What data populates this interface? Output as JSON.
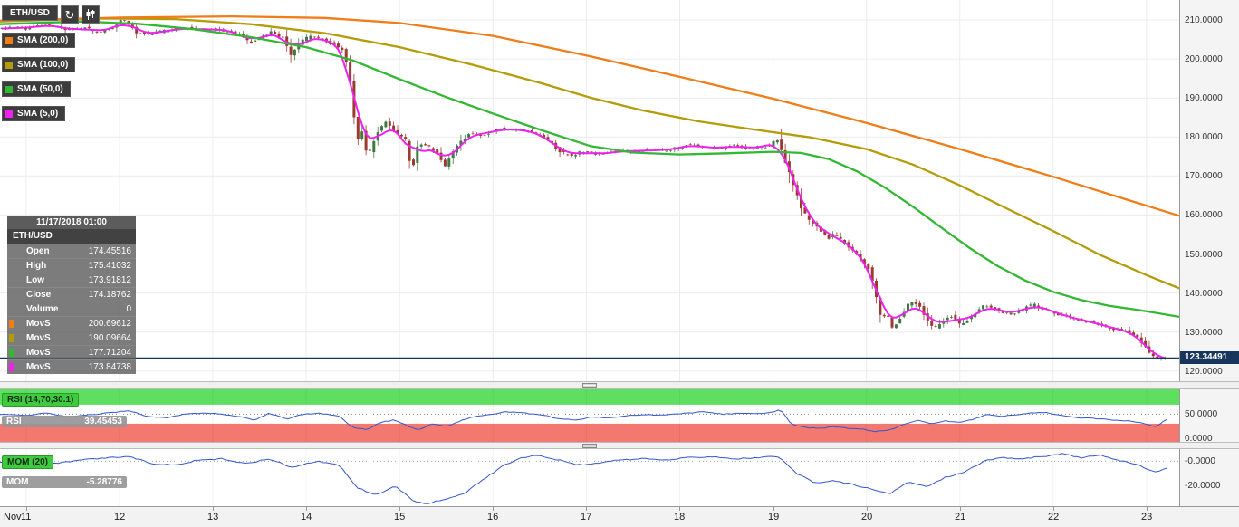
{
  "toolbar": {
    "symbol": "ETH/USD"
  },
  "legend": {
    "items": [
      {
        "label": "SMA (200,0)",
        "color": "#ef7d18"
      },
      {
        "label": "SMA (100,0)",
        "color": "#b39c08"
      },
      {
        "label": "SMA (50,0)",
        "color": "#33b833"
      },
      {
        "label": "SMA (5,0)",
        "color": "#ee22ee"
      }
    ]
  },
  "tooltip": {
    "timestamp": "11/17/2018 01:00",
    "symbol": "ETH/USD",
    "rows": [
      {
        "label": "Open",
        "value": "174.45516"
      },
      {
        "label": "High",
        "value": "175.41032"
      },
      {
        "label": "Low",
        "value": "173.91812"
      },
      {
        "label": "Close",
        "value": "174.18762"
      },
      {
        "label": "Volume",
        "value": "0"
      },
      {
        "label": "MovS",
        "value": "200.69612",
        "marker": "#ef7d18"
      },
      {
        "label": "MovS",
        "value": "190.09664",
        "marker": "#b39c08"
      },
      {
        "label": "MovS",
        "value": "177.71204",
        "marker": "#33b833"
      },
      {
        "label": "MovS",
        "value": "173.84738",
        "marker": "#ee22ee"
      }
    ]
  },
  "price_axis": {
    "ticks": [
      "210.0000",
      "200.0000",
      "190.0000",
      "180.0000",
      "170.0000",
      "160.0000",
      "150.0000",
      "140.0000",
      "130.0000",
      "120.0000"
    ],
    "current_price_label": "123.34491"
  },
  "rsi": {
    "title": "RSI (14,70,30.1)",
    "label": "RSI",
    "value": "39.45453",
    "axis_ticks": [
      {
        "label": "50.0000",
        "value": 50
      },
      {
        "label": "0.0000",
        "value": 0
      }
    ]
  },
  "mom": {
    "title": "MOM (20)",
    "label": "MOM",
    "value": "-5.28776",
    "axis_ticks": [
      {
        "label": "-0.0000",
        "value": 0
      },
      {
        "label": "-20.0000",
        "value": -20
      }
    ]
  },
  "time_axis": {
    "month": "Nov",
    "days": [
      11,
      12,
      13,
      14,
      15,
      16,
      17,
      18,
      19,
      20,
      21,
      22,
      23
    ]
  },
  "chart_data": {
    "type": "candlestick",
    "symbol": "ETH/USD",
    "x_range": [
      10.72,
      23.35
    ],
    "y_range": [
      117.4,
      215.1
    ],
    "y_ticks": [
      120,
      130,
      140,
      150,
      160,
      170,
      180,
      190,
      200,
      210
    ],
    "current_price": 123.34491,
    "colors": {
      "grid": "#ececec",
      "candle_up": "#3f7942",
      "candle_down": "#9c3a31",
      "sma5": "#ee22ee",
      "price_line": "#16365c",
      "indicator_line": "#3355cc",
      "band_green": "#5fdf5f",
      "band_red": "#f3786f"
    },
    "price_path": [
      [
        10.72,
        207.6
      ],
      [
        10.9,
        208.1
      ],
      [
        11.05,
        207.8
      ],
      [
        11.2,
        208.8
      ],
      [
        11.35,
        208.3
      ],
      [
        11.5,
        207.3
      ],
      [
        11.65,
        207.9
      ],
      [
        11.8,
        206.9
      ],
      [
        11.95,
        207.8
      ],
      [
        12.05,
        210.2
      ],
      [
        12.12,
        209.0
      ],
      [
        12.2,
        206.8
      ],
      [
        12.32,
        206.4
      ],
      [
        12.45,
        206.9
      ],
      [
        12.6,
        207.6
      ],
      [
        12.75,
        207.9
      ],
      [
        12.9,
        207.4
      ],
      [
        13.05,
        207.7
      ],
      [
        13.2,
        207.1
      ],
      [
        13.32,
        206.1
      ],
      [
        13.42,
        203.9
      ],
      [
        13.52,
        205.7
      ],
      [
        13.65,
        206.9
      ],
      [
        13.78,
        205.3
      ],
      [
        13.86,
        200.9
      ],
      [
        13.95,
        204.3
      ],
      [
        14.05,
        205.7
      ],
      [
        14.18,
        205.1
      ],
      [
        14.3,
        203.9
      ],
      [
        14.42,
        202.5
      ],
      [
        14.5,
        193.0
      ],
      [
        14.56,
        178.6
      ],
      [
        14.62,
        181.6
      ],
      [
        14.68,
        174.6
      ],
      [
        14.78,
        181.1
      ],
      [
        14.88,
        183.9
      ],
      [
        15.0,
        180.3
      ],
      [
        15.08,
        179.7
      ],
      [
        15.15,
        171.2
      ],
      [
        15.22,
        178.1
      ],
      [
        15.32,
        177.7
      ],
      [
        15.42,
        175.9
      ],
      [
        15.5,
        172.3
      ],
      [
        15.58,
        175.6
      ],
      [
        15.68,
        179.3
      ],
      [
        15.78,
        180.9
      ],
      [
        15.9,
        180.5
      ],
      [
        16.0,
        181.3
      ],
      [
        16.1,
        182.3
      ],
      [
        16.22,
        181.7
      ],
      [
        16.35,
        181.9
      ],
      [
        16.5,
        180.7
      ],
      [
        16.62,
        178.9
      ],
      [
        16.75,
        176.1
      ],
      [
        16.85,
        175.3
      ],
      [
        17.0,
        176.3
      ],
      [
        17.12,
        175.5
      ],
      [
        17.25,
        175.9
      ],
      [
        17.4,
        176.5
      ],
      [
        17.55,
        176.3
      ],
      [
        17.7,
        176.7
      ],
      [
        17.85,
        176.5
      ],
      [
        18.0,
        177.3
      ],
      [
        18.15,
        178.1
      ],
      [
        18.3,
        177.1
      ],
      [
        18.45,
        177.3
      ],
      [
        18.6,
        177.7
      ],
      [
        18.75,
        177.1
      ],
      [
        18.9,
        177.5
      ],
      [
        19.0,
        177.9
      ],
      [
        19.06,
        179.9
      ],
      [
        19.12,
        176.1
      ],
      [
        19.18,
        171.6
      ],
      [
        19.25,
        167.1
      ],
      [
        19.32,
        161.6
      ],
      [
        19.4,
        159.1
      ],
      [
        19.5,
        156.9
      ],
      [
        19.6,
        153.9
      ],
      [
        19.68,
        155.1
      ],
      [
        19.78,
        152.9
      ],
      [
        19.88,
        150.6
      ],
      [
        19.96,
        148.9
      ],
      [
        20.05,
        146.1
      ],
      [
        20.12,
        139.6
      ],
      [
        20.18,
        133.1
      ],
      [
        20.24,
        134.6
      ],
      [
        20.3,
        131.1
      ],
      [
        20.38,
        133.6
      ],
      [
        20.45,
        136.6
      ],
      [
        20.52,
        138.1
      ],
      [
        20.6,
        136.3
      ],
      [
        20.67,
        132.9
      ],
      [
        20.74,
        130.7
      ],
      [
        20.8,
        131.9
      ],
      [
        20.88,
        133.7
      ],
      [
        20.95,
        134.3
      ],
      [
        21.02,
        131.9
      ],
      [
        21.1,
        133.1
      ],
      [
        21.18,
        134.9
      ],
      [
        21.26,
        136.7
      ],
      [
        21.34,
        136.3
      ],
      [
        21.42,
        135.7
      ],
      [
        21.5,
        134.9
      ],
      [
        21.58,
        134.7
      ],
      [
        21.66,
        135.3
      ],
      [
        21.74,
        136.7
      ],
      [
        21.82,
        136.9
      ],
      [
        21.9,
        136.1
      ],
      [
        22.0,
        135.3
      ],
      [
        22.1,
        134.3
      ],
      [
        22.2,
        133.7
      ],
      [
        22.3,
        133.1
      ],
      [
        22.4,
        132.7
      ],
      [
        22.5,
        131.9
      ],
      [
        22.6,
        131.3
      ],
      [
        22.7,
        130.7
      ],
      [
        22.8,
        130.3
      ],
      [
        22.9,
        128.9
      ],
      [
        23.0,
        126.6
      ],
      [
        23.06,
        124.1
      ],
      [
        23.14,
        122.9
      ],
      [
        23.22,
        123.3
      ]
    ],
    "sma": [
      {
        "name": "SMA (200,0)",
        "color": "#ef7d18",
        "points": [
          [
            10.72,
            209.8
          ],
          [
            12.0,
            210.6
          ],
          [
            13.2,
            210.9
          ],
          [
            14.2,
            210.5
          ],
          [
            15.0,
            209.2
          ],
          [
            16.0,
            205.9
          ],
          [
            17.04,
            200.7
          ],
          [
            18.0,
            195.4
          ],
          [
            19.0,
            189.8
          ],
          [
            20.0,
            183.6
          ],
          [
            21.0,
            176.9
          ],
          [
            22.0,
            169.8
          ],
          [
            22.7,
            164.6
          ],
          [
            23.35,
            159.8
          ]
        ]
      },
      {
        "name": "SMA (100,0)",
        "color": "#b39c08",
        "points": [
          [
            10.72,
            209.6
          ],
          [
            11.8,
            210.4
          ],
          [
            12.6,
            210.2
          ],
          [
            13.4,
            208.9
          ],
          [
            14.2,
            206.6
          ],
          [
            15.0,
            203.0
          ],
          [
            15.8,
            198.4
          ],
          [
            16.5,
            193.9
          ],
          [
            17.04,
            190.1
          ],
          [
            17.6,
            186.8
          ],
          [
            18.2,
            184.0
          ],
          [
            18.8,
            181.9
          ],
          [
            19.4,
            179.9
          ],
          [
            20.0,
            176.9
          ],
          [
            20.5,
            172.9
          ],
          [
            21.0,
            167.6
          ],
          [
            21.5,
            161.7
          ],
          [
            22.0,
            155.9
          ],
          [
            22.5,
            149.8
          ],
          [
            23.0,
            144.6
          ],
          [
            23.35,
            141.2
          ]
        ]
      },
      {
        "name": "SMA (50,0)",
        "color": "#33b833",
        "points": [
          [
            10.72,
            208.9
          ],
          [
            11.6,
            209.6
          ],
          [
            12.2,
            209.0
          ],
          [
            12.8,
            207.6
          ],
          [
            13.4,
            205.6
          ],
          [
            14.0,
            203.0
          ],
          [
            14.5,
            199.6
          ],
          [
            15.0,
            194.8
          ],
          [
            15.5,
            190.2
          ],
          [
            16.0,
            186.0
          ],
          [
            16.5,
            181.9
          ],
          [
            17.04,
            177.7
          ],
          [
            17.5,
            176.0
          ],
          [
            18.0,
            175.5
          ],
          [
            18.5,
            175.8
          ],
          [
            19.0,
            176.2
          ],
          [
            19.3,
            175.9
          ],
          [
            19.6,
            174.3
          ],
          [
            19.9,
            171.2
          ],
          [
            20.2,
            167.0
          ],
          [
            20.5,
            162.1
          ],
          [
            20.8,
            156.8
          ],
          [
            21.1,
            151.6
          ],
          [
            21.4,
            147.0
          ],
          [
            21.7,
            143.2
          ],
          [
            22.0,
            140.3
          ],
          [
            22.3,
            138.2
          ],
          [
            22.6,
            136.7
          ],
          [
            22.9,
            135.7
          ],
          [
            23.35,
            133.9
          ]
        ]
      }
    ],
    "rsi_series": {
      "range": [
        -8,
        102
      ],
      "upper_band": 70,
      "lower_band": 30.1,
      "points": [
        [
          10.72,
          50
        ],
        [
          11.0,
          47
        ],
        [
          11.2,
          53
        ],
        [
          11.45,
          44
        ],
        [
          11.7,
          49
        ],
        [
          11.95,
          54
        ],
        [
          12.1,
          58
        ],
        [
          12.3,
          45
        ],
        [
          12.5,
          42
        ],
        [
          12.7,
          50
        ],
        [
          12.9,
          53
        ],
        [
          13.1,
          50
        ],
        [
          13.3,
          44
        ],
        [
          13.45,
          38
        ],
        [
          13.6,
          52
        ],
        [
          13.8,
          40
        ],
        [
          13.95,
          50
        ],
        [
          14.15,
          52
        ],
        [
          14.35,
          46
        ],
        [
          14.5,
          22
        ],
        [
          14.65,
          18
        ],
        [
          14.8,
          33
        ],
        [
          14.95,
          38
        ],
        [
          15.1,
          24
        ],
        [
          15.2,
          17
        ],
        [
          15.35,
          30
        ],
        [
          15.5,
          24
        ],
        [
          15.65,
          36
        ],
        [
          15.8,
          45
        ],
        [
          16.0,
          50
        ],
        [
          16.15,
          55
        ],
        [
          16.35,
          52
        ],
        [
          16.55,
          48
        ],
        [
          16.7,
          40
        ],
        [
          16.9,
          38
        ],
        [
          17.05,
          44
        ],
        [
          17.25,
          42
        ],
        [
          17.45,
          47
        ],
        [
          17.65,
          49
        ],
        [
          17.85,
          48
        ],
        [
          18.05,
          52
        ],
        [
          18.25,
          55
        ],
        [
          18.45,
          50
        ],
        [
          18.65,
          52
        ],
        [
          18.85,
          51
        ],
        [
          19.0,
          54
        ],
        [
          19.08,
          60
        ],
        [
          19.2,
          28
        ],
        [
          19.35,
          22
        ],
        [
          19.5,
          20
        ],
        [
          19.65,
          24
        ],
        [
          19.8,
          21
        ],
        [
          19.95,
          19
        ],
        [
          20.1,
          14
        ],
        [
          20.25,
          17
        ],
        [
          20.4,
          28
        ],
        [
          20.55,
          38
        ],
        [
          20.7,
          30
        ],
        [
          20.85,
          36
        ],
        [
          21.0,
          32
        ],
        [
          21.15,
          40
        ],
        [
          21.3,
          50
        ],
        [
          21.45,
          46
        ],
        [
          21.6,
          48
        ],
        [
          21.75,
          52
        ],
        [
          21.9,
          54
        ],
        [
          22.05,
          48
        ],
        [
          22.2,
          44
        ],
        [
          22.35,
          42
        ],
        [
          22.5,
          40
        ],
        [
          22.65,
          38
        ],
        [
          22.8,
          36
        ],
        [
          22.95,
          32
        ],
        [
          23.1,
          24
        ],
        [
          23.22,
          39.45
        ]
      ]
    },
    "mom_series": {
      "range": [
        -37,
        10
      ],
      "points": [
        [
          10.72,
          -1
        ],
        [
          11.0,
          2
        ],
        [
          11.3,
          -2
        ],
        [
          11.6,
          1
        ],
        [
          11.9,
          3
        ],
        [
          12.1,
          4
        ],
        [
          12.35,
          -2
        ],
        [
          12.6,
          -3
        ],
        [
          12.85,
          1
        ],
        [
          13.1,
          2
        ],
        [
          13.35,
          -2
        ],
        [
          13.6,
          2
        ],
        [
          13.85,
          -5
        ],
        [
          14.1,
          0
        ],
        [
          14.35,
          -3
        ],
        [
          14.55,
          -22
        ],
        [
          14.75,
          -28
        ],
        [
          14.95,
          -20
        ],
        [
          15.15,
          -33
        ],
        [
          15.3,
          -35
        ],
        [
          15.5,
          -31
        ],
        [
          15.7,
          -26
        ],
        [
          15.9,
          -15
        ],
        [
          16.1,
          -4
        ],
        [
          16.3,
          3
        ],
        [
          16.5,
          5
        ],
        [
          16.7,
          1
        ],
        [
          16.9,
          -3
        ],
        [
          17.1,
          -2
        ],
        [
          17.35,
          1
        ],
        [
          17.6,
          2
        ],
        [
          17.85,
          1
        ],
        [
          18.1,
          3
        ],
        [
          18.35,
          4
        ],
        [
          18.6,
          2
        ],
        [
          18.85,
          3
        ],
        [
          19.05,
          4
        ],
        [
          19.25,
          -10
        ],
        [
          19.45,
          -18
        ],
        [
          19.65,
          -16
        ],
        [
          19.85,
          -19
        ],
        [
          20.05,
          -23
        ],
        [
          20.25,
          -27
        ],
        [
          20.45,
          -17
        ],
        [
          20.65,
          -21
        ],
        [
          20.85,
          -13
        ],
        [
          21.05,
          -9
        ],
        [
          21.25,
          0
        ],
        [
          21.45,
          3
        ],
        [
          21.65,
          2
        ],
        [
          21.9,
          4
        ],
        [
          22.1,
          6
        ],
        [
          22.3,
          3
        ],
        [
          22.5,
          5
        ],
        [
          22.7,
          1
        ],
        [
          22.9,
          -3
        ],
        [
          23.1,
          -9
        ],
        [
          23.22,
          -5.29
        ]
      ]
    }
  }
}
